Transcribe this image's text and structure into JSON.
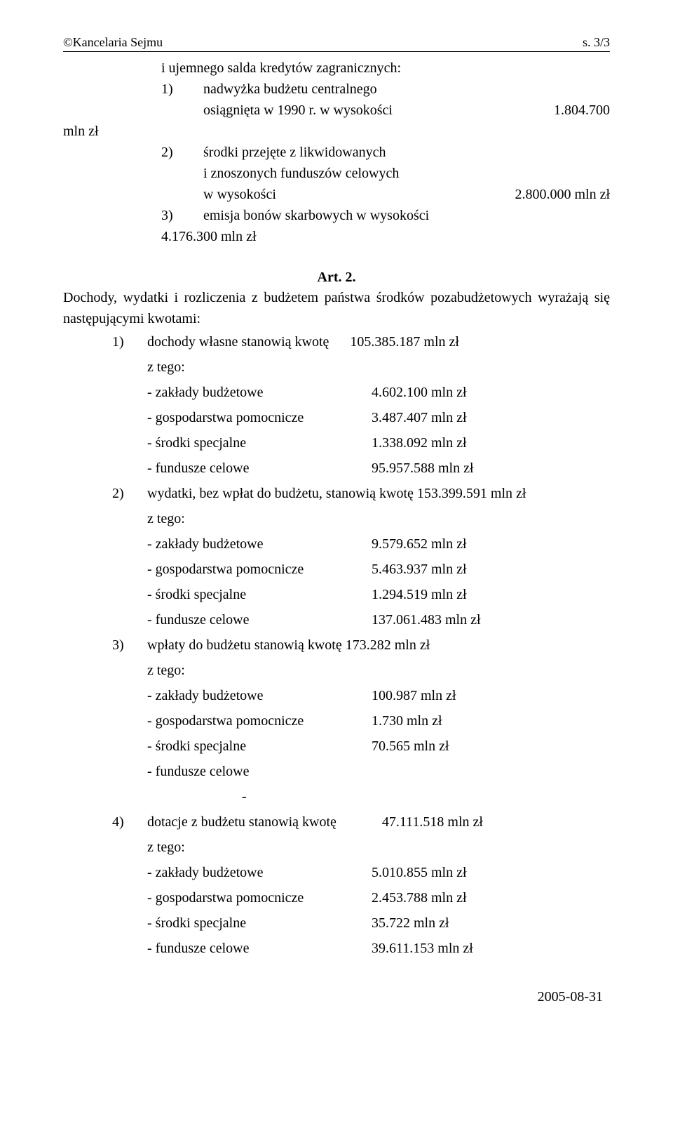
{
  "header": {
    "left": "©Kancelaria Sejmu",
    "right": "s. 3/3"
  },
  "intro": {
    "line0": "i ujemnego salda kredytów zagranicznych:",
    "item1_num": "1)",
    "item1_text": "nadwyżka budżetu centralnego",
    "item1_line2_left": "osiągnięta w 1990 r. w wysokości",
    "item1_line2_right": "1.804.700",
    "mln": "mln zł",
    "item2_num": "2)",
    "item2_text": "środki przejęte z likwidowanych",
    "item2_line2": "i znoszonych funduszów celowych",
    "item2_line3_left": "w wysokości",
    "item2_line3_right": "2.800.000 mln zł",
    "item3_num": "3)",
    "item3_text": "emisja bonów skarbowych w wysokości",
    "item3_val": "4.176.300 mln zł"
  },
  "art": {
    "title": "Art. 2.",
    "para": "Dochody, wydatki i rozliczenia z budżetem państwa środków pozabudżetowych wyrażają się następującymi kwotami:"
  },
  "sec1": {
    "num": "1)",
    "label": "dochody własne stanowią kwotę",
    "val": "105.385.187 mln zł",
    "ztego": "z tego:",
    "r1l": "- zakłady budżetowe",
    "r1v": "4.602.100 mln zł",
    "r2l": "- gospodarstwa pomocnicze",
    "r2v": "3.487.407 mln zł",
    "r3l": "- środki specjalne",
    "r3v": "1.338.092 mln zł",
    "r4l": "- fundusze celowe",
    "r4v": "95.957.588 mln zł"
  },
  "sec2": {
    "num": "2)",
    "label": "wydatki, bez wpłat do budżetu, stanowią kwotę 153.399.591 mln zł",
    "ztego": "z tego:",
    "r1l": "- zakłady budżetowe",
    "r1v": "9.579.652 mln zł",
    "r2l": "- gospodarstwa pomocnicze",
    "r2v": "5.463.937 mln zł",
    "r3l": "- środki specjalne",
    "r3v": "1.294.519 mln zł",
    "r4l": "- fundusze celowe",
    "r4v": "137.061.483 mln zł"
  },
  "sec3": {
    "num": "3)",
    "label": "wpłaty do budżetu stanowią kwotę   173.282 mln zł",
    "ztego": "z tego:",
    "r1l": "- zakłady budżetowe",
    "r1v": "100.987 mln zł",
    "r2l": "- gospodarstwa pomocnicze",
    "r2v": "1.730 mln zł",
    "r3l": "- środki specjalne",
    "r3v": "70.565 mln zł",
    "r4l": "- fundusze celowe",
    "r4v": "",
    "dash": "-"
  },
  "sec4": {
    "num": "4)",
    "label": "dotacje z budżetu stanowią kwotę",
    "val": "47.111.518 mln zł",
    "ztego": "z tego:",
    "r1l": "- zakłady budżetowe",
    "r1v": "5.010.855 mln zł",
    "r2l": "- gospodarstwa pomocnicze",
    "r2v": "2.453.788 mln zł",
    "r3l": "- środki specjalne",
    "r3v": "35.722 mln zł",
    "r4l": "- fundusze celowe",
    "r4v": "39.611.153 mln zł"
  },
  "footer": {
    "date": "2005-08-31"
  }
}
